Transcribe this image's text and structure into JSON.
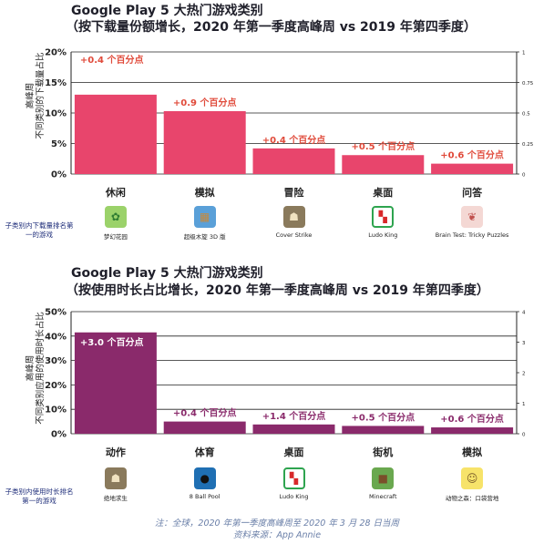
{
  "charts": {
    "downloads": {
      "type": "bar",
      "title_line1": "Google Play 5 大热门游戏类别",
      "title_line2": "（按下载量份额增长，2020 年第一季度高峰周 vs 2019 年第四季度）",
      "ylabel_line1": "高峰周",
      "ylabel_line2": "不同类别的下载量占比",
      "categories": [
        "休闲",
        "模拟",
        "冒险",
        "桌面",
        "问答"
      ],
      "values": [
        13.0,
        10.3,
        4.2,
        3.1,
        1.7
      ],
      "annotations": [
        "+0.4 个百分点",
        "+0.9 个百分点",
        "+0.4 个百分点",
        "+0.5 个百分点",
        "+0.6 个百分点"
      ],
      "y_ticks": [
        "0%",
        "5%",
        "10%",
        "15%",
        "20%"
      ],
      "y_tick_values": [
        0,
        5,
        10,
        15,
        20
      ],
      "ylim": [
        0,
        20
      ],
      "right_ticks": [
        "0",
        "0.25",
        "0.5",
        "0.75",
        "1"
      ],
      "right_tick_values": [
        0,
        0.25,
        0.5,
        0.75,
        1
      ],
      "right_ylim": [
        0,
        1
      ],
      "bar_color": "#e8456c",
      "annotation_color": "#e04a3a",
      "top_game_row_label": "子类别内下载量排名第一的游戏",
      "top_games": [
        "梦幻花园",
        "超级木旋 3D 版",
        "Cover Strike",
        "Ludo King",
        "Brain Test: Tricky Puzzles"
      ],
      "game_icons": [
        "plant-icon",
        "wood-block-icon",
        "soldier-icon",
        "ludo-board-icon",
        "brain-icon"
      ]
    },
    "usage": {
      "type": "bar",
      "title_line1": "Google Play 5 大热门游戏类别",
      "title_line2": "（按使用时长占比增长，2020 年第一季度高峰周 vs 2019 年第四季度）",
      "ylabel_line1": "高峰周",
      "ylabel_line2": "不同类别应用的使用时长占比",
      "categories": [
        "动作",
        "体育",
        "桌面",
        "街机",
        "模拟"
      ],
      "values": [
        41.5,
        5.0,
        3.8,
        3.2,
        2.6
      ],
      "annotations": [
        "+3.0 个百分点",
        "+0.4 个百分点",
        "+1.4 个百分点",
        "+0.5 个百分点",
        "+0.6 个百分点"
      ],
      "y_ticks": [
        "0%",
        "10%",
        "20%",
        "30%",
        "40%",
        "50%"
      ],
      "y_tick_values": [
        0,
        10,
        20,
        30,
        40,
        50
      ],
      "ylim": [
        0,
        50
      ],
      "right_ticks": [
        "0",
        "1",
        "2",
        "3",
        "4"
      ],
      "right_tick_values": [
        0,
        1,
        2,
        3,
        4
      ],
      "right_ylim": [
        0,
        4
      ],
      "bar_color": "#8a2a6b",
      "annotation_color": "#8a2a6b",
      "top_game_row_label": "子类别内使用时长排名第一的游戏",
      "top_games": [
        "绝地求生",
        "8 Ball Pool",
        "Ludo King",
        "Minecraft",
        "动物之森：口袋营地"
      ],
      "game_icons": [
        "soldier-icon",
        "billiard-ball-icon",
        "ludo-board-icon",
        "minecraft-block-icon",
        "animal-face-icon"
      ]
    }
  },
  "chart_data": [
    {
      "type": "bar",
      "title": "Google Play 5 大热门游戏类别（按下载量份额增长，2020 年第一季度高峰周 vs 2019 年第四季度）",
      "categories": [
        "休闲",
        "模拟",
        "冒险",
        "桌面",
        "问答"
      ],
      "values": [
        13.0,
        10.3,
        4.2,
        3.1,
        1.7
      ],
      "ylabel": "高峰周 不同类别的下载量占比",
      "ylim": [
        0,
        20
      ]
    },
    {
      "type": "bar",
      "title": "Google Play 5 大热门游戏类别（按使用时长占比增长，2020 年第一季度高峰周 vs 2019 年第四季度）",
      "categories": [
        "动作",
        "体育",
        "桌面",
        "街机",
        "模拟"
      ],
      "values": [
        41.5,
        5.0,
        3.8,
        3.2,
        2.6
      ],
      "ylabel": "高峰周 不同类别应用的使用时长占比",
      "ylim": [
        0,
        50
      ]
    }
  ],
  "footer": {
    "note": "注：全球，2020 年第一季度高峰周至 2020 年 3 月 28 日当周",
    "source": "资料来源：App Annie"
  }
}
